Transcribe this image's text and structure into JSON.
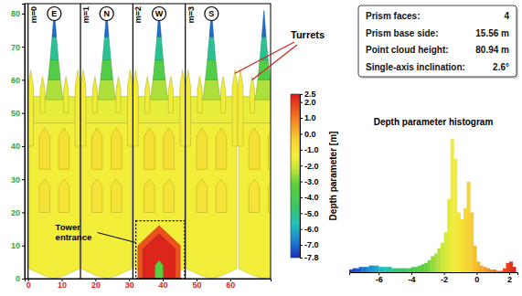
{
  "chart_data": [
    {
      "type": "unwrap",
      "xlim": [
        -1,
        72
      ],
      "xticks": [
        0,
        10,
        20,
        30,
        40,
        50,
        60
      ],
      "ylim": [
        0,
        83
      ],
      "yticks": [
        0,
        10,
        20,
        30,
        40,
        50,
        60,
        70,
        80
      ],
      "faces": [
        {
          "label": "m=0",
          "letter": "E",
          "start": 0
        },
        {
          "label": "m=1",
          "letter": "N",
          "start": 15.56
        },
        {
          "label": "m=2",
          "letter": "W",
          "start": 31.12
        },
        {
          "label": "m=3",
          "letter": "S",
          "start": 46.68
        },
        {
          "label": null,
          "letter": null,
          "start": 62.24
        }
      ],
      "facade": [
        {
          "depth": -1.4,
          "points": [
            [
              0.3,
              3
            ],
            [
              0.3,
              47
            ],
            [
              15.26,
              47
            ],
            [
              15.26,
              3
            ],
            [
              11,
              1
            ],
            [
              7.78,
              0
            ],
            [
              4.5,
              1
            ]
          ]
        },
        {
          "depth": -1.6,
          "points": [
            [
              1.5,
              47
            ],
            [
              1.5,
              55
            ],
            [
              14.06,
              55
            ],
            [
              14.06,
              47
            ]
          ]
        },
        {
          "depth": -1.3,
          "points": [
            [
              0,
              40
            ],
            [
              0,
              58
            ],
            [
              0.8,
              63
            ],
            [
              1.6,
              58
            ],
            [
              1.6,
              40
            ]
          ]
        },
        {
          "depth": -1.3,
          "points": [
            [
              13.96,
              40
            ],
            [
              13.96,
              58
            ],
            [
              14.76,
              63
            ],
            [
              15.56,
              58
            ],
            [
              15.56,
              40
            ]
          ]
        },
        {
          "depth": -1.5,
          "points": [
            [
              3.6,
              50
            ],
            [
              3.6,
              57
            ],
            [
              4.3,
              61
            ],
            [
              5,
              57
            ],
            [
              5,
              50
            ]
          ]
        },
        {
          "depth": -1.5,
          "points": [
            [
              10.56,
              50
            ],
            [
              10.56,
              57
            ],
            [
              11.26,
              61
            ],
            [
              11.96,
              57
            ],
            [
              11.96,
              50
            ]
          ]
        },
        {
          "depth": -2.4,
          "points": [
            [
              5.2,
              54
            ],
            [
              10.36,
              54
            ],
            [
              9.6,
              60
            ],
            [
              5.96,
              60
            ]
          ]
        },
        {
          "depth": -3.6,
          "points": [
            [
              5.96,
              60
            ],
            [
              9.6,
              60
            ],
            [
              9.0,
              66
            ],
            [
              6.56,
              66
            ]
          ]
        },
        {
          "depth": -5.2,
          "points": [
            [
              6.56,
              66
            ],
            [
              9.0,
              66
            ],
            [
              8.4,
              73
            ],
            [
              7.16,
              73
            ]
          ]
        },
        {
          "depth": -7.0,
          "points": [
            [
              7.16,
              73
            ],
            [
              8.4,
              73
            ],
            [
              7.78,
              80.9
            ]
          ]
        },
        {
          "depth": -0.9,
          "points": [
            [
              3.3,
              33
            ],
            [
              3.3,
              43
            ],
            [
              4.9,
              45.5
            ],
            [
              6.5,
              43
            ],
            [
              6.5,
              33
            ]
          ]
        },
        {
          "depth": -0.9,
          "points": [
            [
              9.06,
              33
            ],
            [
              9.06,
              43
            ],
            [
              10.66,
              45.5
            ],
            [
              12.26,
              43
            ],
            [
              12.26,
              33
            ]
          ]
        },
        {
          "depth": -1.0,
          "points": [
            [
              3.3,
              20
            ],
            [
              3.3,
              28
            ],
            [
              4.9,
              30
            ],
            [
              6.5,
              28
            ],
            [
              6.5,
              20
            ]
          ]
        },
        {
          "depth": -1.0,
          "points": [
            [
              9.06,
              20
            ],
            [
              9.06,
              28
            ],
            [
              10.66,
              30
            ],
            [
              12.26,
              28
            ],
            [
              12.26,
              20
            ]
          ]
        }
      ],
      "face_regions": [
        {
          "face": 2,
          "regions": [
            {
              "depth": 1.6,
              "points": [
                [
                  1.5,
                  0
                ],
                [
                  1.5,
                  10
                ],
                [
                  7.78,
                  16
                ],
                [
                  14.06,
                  10
                ],
                [
                  14.06,
                  0
                ]
              ]
            },
            {
              "depth": 2.3,
              "points": [
                [
                  3,
                  0
                ],
                [
                  3,
                  9
                ],
                [
                  7.78,
                  13.5
                ],
                [
                  12.56,
                  9
                ],
                [
                  12.56,
                  0
                ]
              ]
            },
            {
              "depth": -3.4,
              "points": [
                [
                  6.6,
                  0
                ],
                [
                  6.6,
                  4
                ],
                [
                  7.78,
                  5.5
                ],
                [
                  8.96,
                  4
                ],
                [
                  8.96,
                  0
                ]
              ]
            }
          ]
        }
      ],
      "colorbar": {
        "label": "Depth parameter [m]",
        "range": [
          -7.8,
          2.5
        ],
        "ticks": [
          2.5,
          {
            "value": 2,
            "label": "2.0"
          },
          {
            "value": 1,
            "label": "1.0"
          },
          {
            "value": 0,
            "label": "0.0"
          },
          {
            "value": -1,
            "label": "-1.0"
          },
          {
            "value": -2,
            "label": "-2.0"
          },
          {
            "value": -3,
            "label": "-3.0"
          },
          {
            "value": -4,
            "label": "-4.0"
          },
          {
            "value": -5,
            "label": "-5.0"
          },
          {
            "value": -6,
            "label": "-6.0"
          },
          {
            "value": -7,
            "label": "-7.0"
          },
          -7.8
        ]
      },
      "annotations": [
        {
          "text": "Turrets",
          "targets": [
            {
              "x": 61.4,
              "y": 62
            },
            {
              "x": 66.5,
              "y": 60
            }
          ]
        },
        {
          "lines": [
            "Tower",
            "entrance"
          ],
          "box": {
            "x": [
              32,
              46.5
            ],
            "y": [
              0,
              17.5
            ]
          }
        }
      ]
    },
    {
      "type": "histogram",
      "title": "Depth parameter histogram",
      "bins": [
        -7.8,
        -7.6,
        -7.4,
        -7.2,
        -7.0,
        -6.8,
        -6.6,
        -6.4,
        -6.2,
        -6.0,
        -5.8,
        -5.6,
        -5.4,
        -5.2,
        -5.0,
        -4.8,
        -4.6,
        -4.4,
        -4.2,
        -4.0,
        -3.8,
        -3.6,
        -3.4,
        -3.2,
        -3.0,
        -2.8,
        -2.6,
        -2.4,
        -2.2,
        -2.0,
        -1.8,
        -1.6,
        -1.4,
        -1.2,
        -1.0,
        -0.8,
        -0.6,
        -0.4,
        -0.2,
        0,
        0.2,
        0.4,
        0.6,
        0.8,
        1.0,
        1.2,
        1.4,
        1.6,
        1.8,
        2.0,
        2.2,
        2.4
      ],
      "counts": [
        2,
        3,
        3,
        4,
        4,
        4,
        5,
        5,
        5,
        4,
        4,
        4,
        4,
        3,
        3,
        3,
        3,
        3,
        3,
        4,
        4,
        5,
        6,
        7,
        9,
        12,
        14,
        18,
        22,
        30,
        55,
        100,
        85,
        45,
        40,
        48,
        68,
        45,
        20,
        8,
        5,
        4,
        3,
        2,
        2,
        1,
        1,
        3,
        7,
        8,
        4
      ],
      "xlim": [
        -7.8,
        2.5
      ],
      "xticks": [
        -6,
        -4,
        -2,
        0,
        2
      ],
      "ylim": [
        0,
        105
      ],
      "tick_labels": "x"
    }
  ],
  "info_box": {
    "rows": [
      [
        "Prism faces:",
        "4"
      ],
      [
        "Prism base side:",
        "15.56 m"
      ],
      [
        "Point cloud height:",
        "80.94 m"
      ],
      [
        "Single-axis inclination:",
        "2.6°"
      ]
    ]
  }
}
